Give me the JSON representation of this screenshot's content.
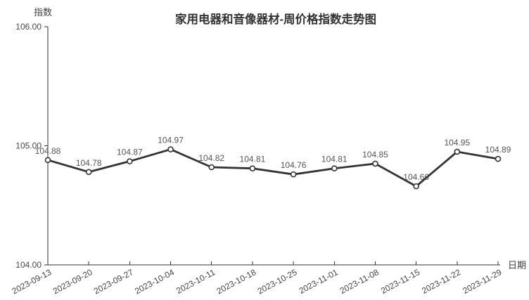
{
  "chart_data": {
    "type": "line",
    "title": "家用电器和音像器材-周价格指数走势图",
    "xlabel": "日期",
    "ylabel": "指数",
    "categories": [
      "2023-09-13",
      "2023-09-20",
      "2023-09-27",
      "2023-10-04",
      "2023-10-11",
      "2023-10-18",
      "2023-10-25",
      "2023-11-01",
      "2023-11-08",
      "2023-11-15",
      "2023-11-22",
      "2023-11-29"
    ],
    "values": [
      104.88,
      104.78,
      104.87,
      104.97,
      104.82,
      104.81,
      104.76,
      104.81,
      104.85,
      104.66,
      104.95,
      104.89
    ],
    "y_ticks": [
      "104.00",
      "105.00",
      "106.00"
    ],
    "ylim": [
      104,
      106
    ],
    "grid": false,
    "legend_position": "none",
    "colors": {
      "line": "#333333",
      "marker_fill": "#ffffff",
      "marker_stroke": "#333333",
      "axis": "#333333",
      "data_label": "#555555",
      "background": "#ffffff"
    }
  }
}
